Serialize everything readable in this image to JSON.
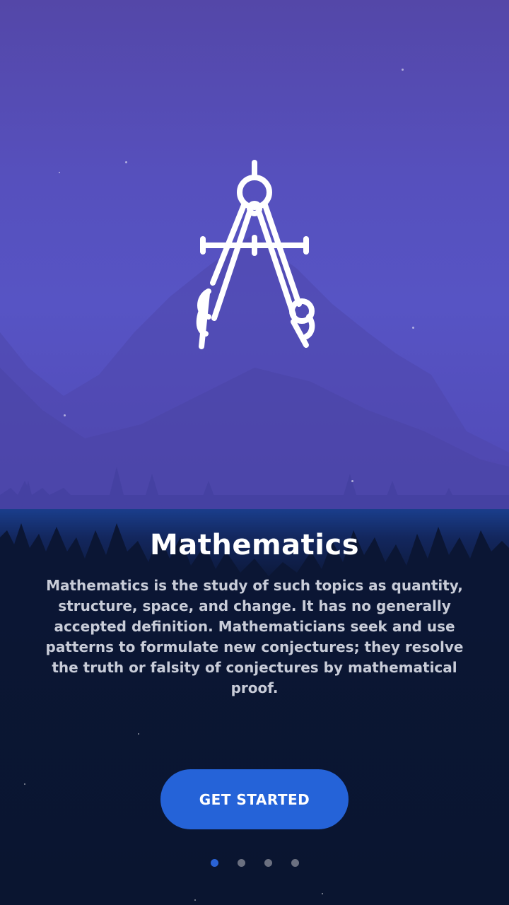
{
  "slide": {
    "title": "Mathematics",
    "description": "Mathematics is the study of such topics as quantity, structure, space, and change. It has no generally accepted definition. Mathematicians seek and use patterns to formulate new conjectures; they resolve the truth or falsity of conjectures by mathematical proof.",
    "icon": "compass-icon"
  },
  "cta": {
    "label": "GET STARTED"
  },
  "pager": {
    "count": 4,
    "active_index": 0
  },
  "colors": {
    "accent": "#2563d8",
    "hero_top": "#5447a8",
    "hero_mid": "#5754c4",
    "bottom_bg": "#0b1532",
    "dot_inactive": "#6b7080"
  }
}
